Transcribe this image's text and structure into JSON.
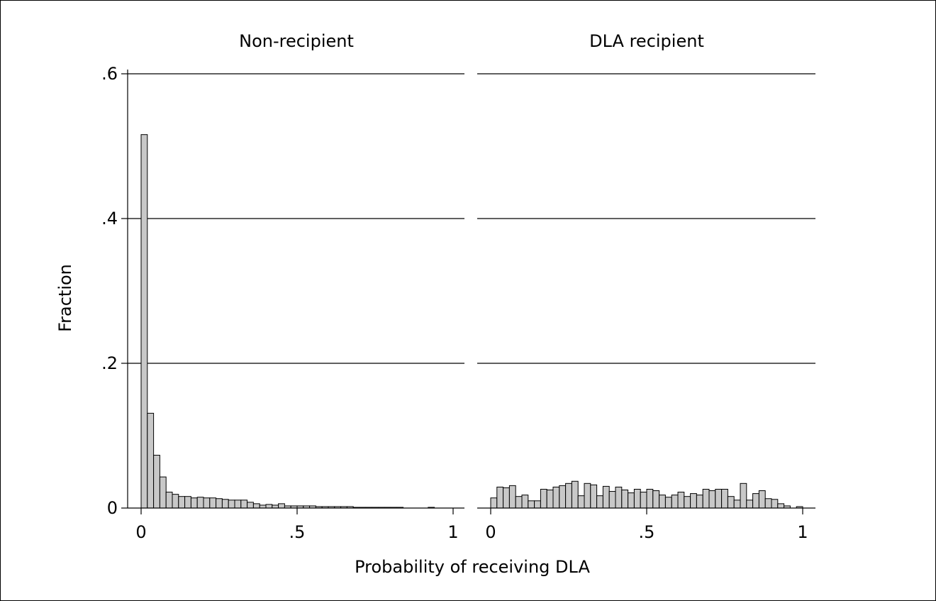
{
  "chart_data": {
    "type": "bar",
    "ylabel": "Fraction",
    "xlabel": "Probability of receiving DLA",
    "ylim": [
      0,
      0.6
    ],
    "xlim": [
      0,
      1
    ],
    "yticks": [
      {
        "value": 0,
        "label": "0"
      },
      {
        "value": 0.2,
        "label": ".2"
      },
      {
        "value": 0.4,
        "label": ".4"
      },
      {
        "value": 0.6,
        "label": ".6"
      }
    ],
    "xticks": [
      {
        "value": 0,
        "label": "0"
      },
      {
        "value": 0.5,
        "label": ".5"
      },
      {
        "value": 1,
        "label": "1"
      }
    ],
    "grid": true,
    "bin_width": 0.02,
    "bin_start": 0,
    "panels": [
      {
        "title": "Non-recipient",
        "values": [
          0.516,
          0.131,
          0.073,
          0.043,
          0.022,
          0.019,
          0.016,
          0.016,
          0.014,
          0.015,
          0.014,
          0.014,
          0.013,
          0.012,
          0.011,
          0.011,
          0.011,
          0.008,
          0.006,
          0.004,
          0.005,
          0.004,
          0.006,
          0.003,
          0.003,
          0.003,
          0.003,
          0.003,
          0.002,
          0.002,
          0.002,
          0.002,
          0.002,
          0.002,
          0.001,
          0.001,
          0.001,
          0.001,
          0.001,
          0.001,
          0.001,
          0.001,
          0,
          0,
          0,
          0,
          0.001,
          0,
          0,
          0
        ]
      },
      {
        "title": "DLA recipient",
        "values": [
          0.014,
          0.029,
          0.028,
          0.031,
          0.016,
          0.018,
          0.01,
          0.01,
          0.026,
          0.025,
          0.029,
          0.031,
          0.034,
          0.037,
          0.017,
          0.034,
          0.032,
          0.017,
          0.03,
          0.023,
          0.029,
          0.025,
          0.021,
          0.026,
          0.022,
          0.026,
          0.024,
          0.018,
          0.015,
          0.018,
          0.022,
          0.016,
          0.02,
          0.018,
          0.026,
          0.024,
          0.026,
          0.026,
          0.016,
          0.011,
          0.034,
          0.011,
          0.02,
          0.024,
          0.013,
          0.012,
          0.006,
          0.003,
          0,
          0.002
        ]
      }
    ]
  }
}
